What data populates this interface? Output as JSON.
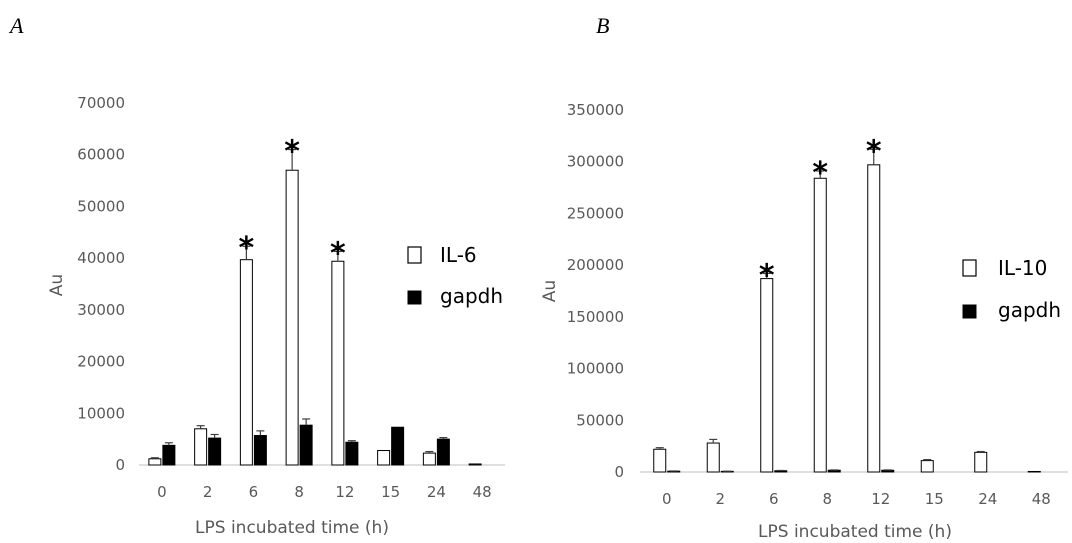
{
  "chart_data": [
    {
      "panel": "A",
      "type": "bar",
      "categories": [
        "0",
        "2",
        "6",
        "8",
        "12",
        "15",
        "24",
        "48"
      ],
      "xlabel": "LPS incubated time (h)",
      "ylabel": "Au",
      "ylim": [
        0,
        70000
      ],
      "yticks": [
        "0",
        "10000",
        "20000",
        "30000",
        "40000",
        "50000",
        "60000",
        "70000"
      ],
      "series": [
        {
          "name": "IL-6",
          "values": [
            1200,
            7000,
            39700,
            57000,
            39400,
            2800,
            2300,
            200
          ],
          "errors": [
            200,
            600,
            2600,
            4000,
            1900,
            0,
            300,
            0
          ]
        },
        {
          "name": "gapdh",
          "values": [
            3800,
            5200,
            5700,
            7700,
            4400,
            7300,
            5000,
            0
          ],
          "errors": [
            500,
            700,
            900,
            1200,
            300,
            0,
            300,
            0
          ]
        }
      ],
      "significant": [
        "6",
        "8",
        "12"
      ],
      "significance_mark": "*",
      "colors": {
        "IL-6": "#ffffff",
        "gapdh": "#000000",
        "stroke": "#000000"
      },
      "grid": false,
      "legend_position": "right"
    },
    {
      "panel": "B",
      "type": "bar",
      "categories": [
        "0",
        "2",
        "6",
        "8",
        "12",
        "15",
        "24",
        "48"
      ],
      "xlabel": "LPS incubated time (h)",
      "ylabel": "Au",
      "ylim": [
        0,
        350000
      ],
      "yticks": [
        "0",
        "50000",
        "100000",
        "150000",
        "200000",
        "250000",
        "300000",
        "350000"
      ],
      "series": [
        {
          "name": "IL-10",
          "values": [
            22000,
            28000,
            187000,
            284000,
            297000,
            11000,
            19000,
            500
          ],
          "errors": [
            1500,
            3500,
            5000,
            7000,
            15000,
            1000,
            800,
            0
          ]
        },
        {
          "name": "gapdh",
          "values": [
            800,
            600,
            1200,
            1700,
            1700,
            0,
            0,
            0
          ],
          "errors": [
            200,
            200,
            300,
            300,
            300,
            0,
            0,
            0
          ]
        }
      ],
      "significant": [
        "6",
        "8",
        "12"
      ],
      "significance_mark": "*",
      "colors": {
        "IL-10": "#ffffff",
        "gapdh": "#000000",
        "stroke": "#000000"
      },
      "grid": false,
      "legend_position": "right"
    }
  ]
}
